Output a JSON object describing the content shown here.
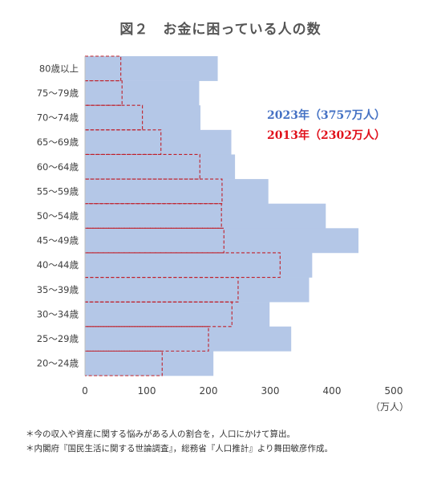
{
  "chart_data": {
    "type": "bar",
    "orientation": "horizontal",
    "title": "図２　お金に困っている人の数",
    "categories": [
      "80歳以上",
      "75〜79歳",
      "70〜74歳",
      "65〜69歳",
      "60〜64歳",
      "55〜59歳",
      "50〜54歳",
      "45〜49歳",
      "40〜44歳",
      "35〜39歳",
      "30〜34歳",
      "25〜29歳",
      "20〜24歳"
    ],
    "series": [
      {
        "name": "2023年（3757万人）",
        "total": "3757万人",
        "style": "filled",
        "color": "#b4c7e7",
        "values": [
          215,
          185,
          187,
          237,
          243,
          297,
          390,
          443,
          368,
          363,
          299,
          334,
          208
        ]
      },
      {
        "name": "2013年（2302万人）",
        "total": "2302万人",
        "style": "dashed-outline",
        "color": "#c0202a",
        "values": [
          58,
          60,
          93,
          123,
          186,
          222,
          221,
          225,
          316,
          248,
          238,
          200,
          125
        ]
      }
    ],
    "xlim": [
      0,
      500
    ],
    "xticks": [
      "0",
      "100",
      "200",
      "300",
      "400",
      "500"
    ],
    "xlabel": "（万人）",
    "ylabel": "",
    "grid": false,
    "legend_position": "right"
  },
  "notes": [
    "＊今の収入や資産に関する悩みがある人の割合を，人口にかけて算出。",
    "＊内閣府『国民生活に関する世論調査』，総務省『人口推計』より舞田敏彦作成。"
  ]
}
